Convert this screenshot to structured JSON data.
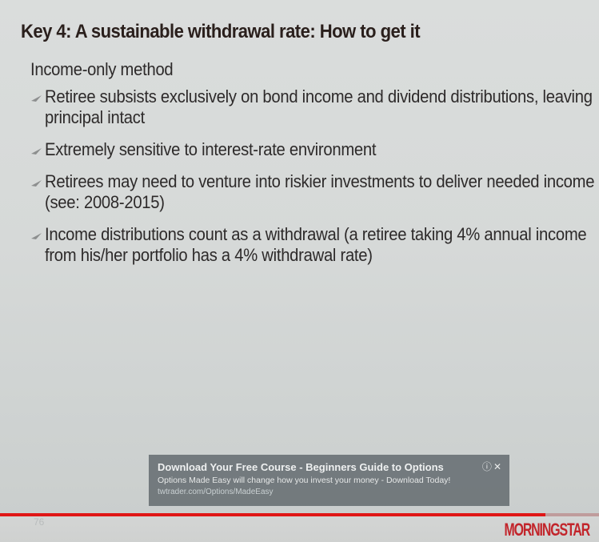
{
  "slide": {
    "title": "Key 4: A sustainable withdrawal rate: How to get it",
    "subhead": "Income-only method",
    "bullets": [
      {
        "text": "Retiree subsists exclusively on bond income and dividend distributions, leaving principal intact"
      },
      {
        "text": "Extremely sensitive to interest-rate environment"
      },
      {
        "text": "Retirees may need to venture into riskier investments to deliver needed income (see: 2008-2015)"
      },
      {
        "text": "Income distributions count as a withdrawal (a retiree taking 4% annual income from his/her portfolio has a 4% withdrawal rate)"
      }
    ],
    "page_number": "76",
    "logo": "MORNINGSTAR",
    "accent_color": "#c2252b"
  },
  "ad": {
    "headline": "Download Your Free Course - Beginners Guide to Options",
    "description": "Options Made Easy will change how you invest your money - Download Today!",
    "url": "twtrader.com/Options/MadeEasy",
    "info_icon": "info-icon",
    "close_icon": "close-icon"
  },
  "player": {
    "progress_fraction": 0.91,
    "progress_color": "#e01616"
  }
}
